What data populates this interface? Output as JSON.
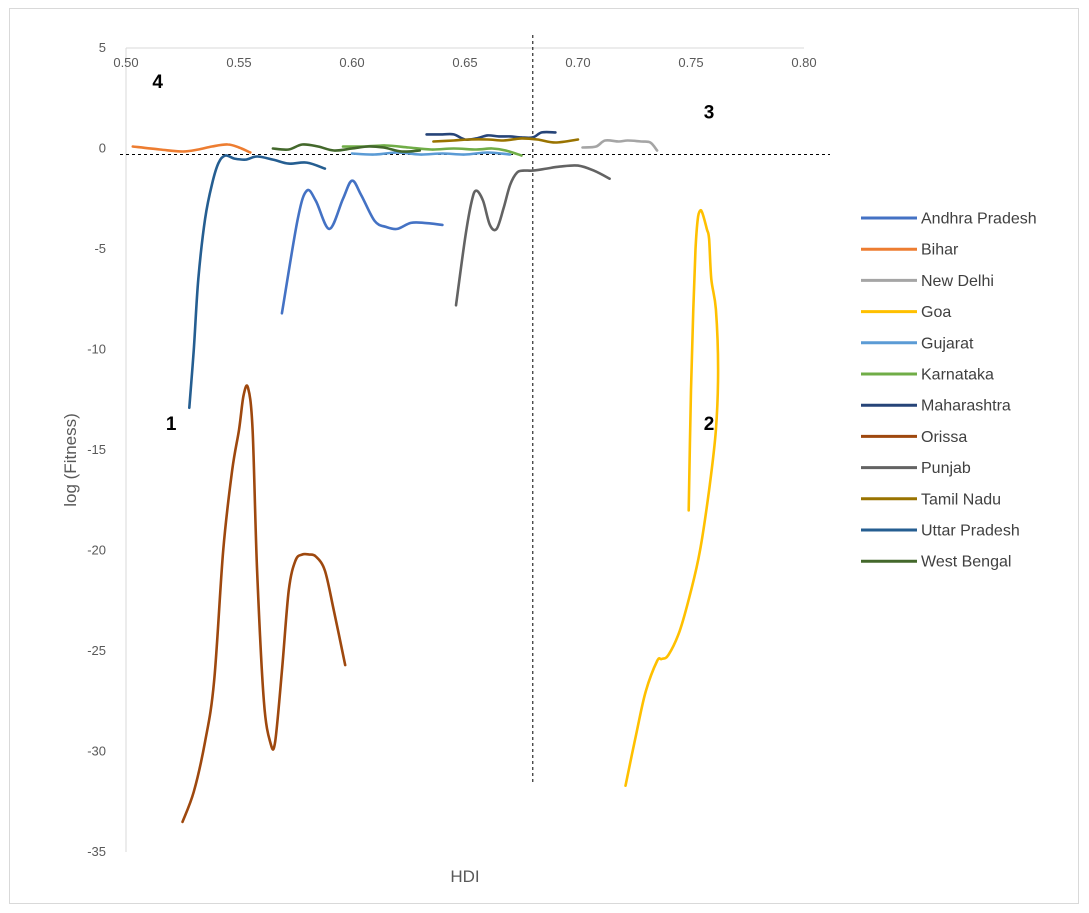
{
  "chart_data": {
    "type": "line",
    "title": "",
    "xlabel": "HDI",
    "ylabel": "log (Fitness)",
    "xlim": [
      0.5,
      0.8
    ],
    "ylim": [
      -35,
      5
    ],
    "x_ticks": [
      "0.50",
      "0.55",
      "0.60",
      "0.65",
      "0.70",
      "0.75",
      "0.80"
    ],
    "y_ticks": [
      "5",
      "0",
      "-5",
      "-10",
      "-15",
      "-20",
      "-25",
      "-30",
      "-35"
    ],
    "x_axis_at": 5,
    "legend_position": "right",
    "reference_lines": {
      "x": 0.68,
      "y": -0.3
    },
    "quadrant_labels": [
      {
        "text": "4",
        "x": 0.514,
        "y": 3.0
      },
      {
        "text": "3",
        "x": 0.758,
        "y": 1.5
      },
      {
        "text": "1",
        "x": 0.52,
        "y": -14.0
      },
      {
        "text": "2",
        "x": 0.758,
        "y": -14.0
      }
    ],
    "series": [
      {
        "name": "Andhra Pradesh",
        "color": "#4472C4",
        "x": [
          0.569,
          0.576,
          0.58,
          0.584,
          0.59,
          0.596,
          0.6,
          0.604,
          0.61,
          0.615,
          0.62,
          0.626,
          0.632,
          0.64
        ],
        "y": [
          -8.2,
          -3.5,
          -2.1,
          -2.6,
          -4.0,
          -2.5,
          -1.6,
          -2.3,
          -3.6,
          -3.9,
          -4.0,
          -3.7,
          -3.7,
          -3.8
        ]
      },
      {
        "name": "Bihar",
        "color": "#ED7D31",
        "x": [
          0.503,
          0.515,
          0.525,
          0.532,
          0.538,
          0.545,
          0.55,
          0.555
        ],
        "y": [
          0.1,
          -0.05,
          -0.15,
          -0.05,
          0.1,
          0.2,
          0.05,
          -0.2
        ]
      },
      {
        "name": "New Delhi",
        "color": "#A5A5A5",
        "x": [
          0.702,
          0.708,
          0.712,
          0.718,
          0.722,
          0.728,
          0.732,
          0.735
        ],
        "y": [
          0.05,
          0.1,
          0.4,
          0.35,
          0.4,
          0.35,
          0.3,
          -0.1
        ]
      },
      {
        "name": "Goa",
        "color": "#FFC000",
        "x": [
          0.749,
          0.75,
          0.751,
          0.752,
          0.753,
          0.754,
          0.755,
          0.757,
          0.758,
          0.759,
          0.761,
          0.762,
          0.761,
          0.758,
          0.754,
          0.75,
          0.745,
          0.74,
          0.737,
          0.735,
          0.73,
          0.726,
          0.721
        ],
        "y": [
          -18.0,
          -12.0,
          -8.0,
          -5.0,
          -3.5,
          -3.1,
          -3.2,
          -4.0,
          -4.5,
          -6.5,
          -8.0,
          -11.0,
          -14.0,
          -17.0,
          -20.0,
          -22.0,
          -24.0,
          -25.2,
          -25.4,
          -25.5,
          -27.0,
          -29.0,
          -31.7
        ]
      },
      {
        "name": "Gujarat",
        "color": "#5B9BD5",
        "x": [
          0.6,
          0.61,
          0.62,
          0.63,
          0.64,
          0.65,
          0.66,
          0.67
        ],
        "y": [
          -0.25,
          -0.3,
          -0.2,
          -0.3,
          -0.25,
          -0.3,
          -0.2,
          -0.3
        ]
      },
      {
        "name": "Karnataka",
        "color": "#70AD47",
        "x": [
          0.596,
          0.605,
          0.615,
          0.625,
          0.635,
          0.645,
          0.655,
          0.662,
          0.668,
          0.675
        ],
        "y": [
          0.1,
          0.1,
          0.15,
          0.05,
          -0.05,
          0.0,
          -0.05,
          0.0,
          -0.1,
          -0.35
        ]
      },
      {
        "name": "Maharashtra",
        "color": "#264478",
        "x": [
          0.633,
          0.64,
          0.645,
          0.65,
          0.655,
          0.66,
          0.665,
          0.67,
          0.675,
          0.68,
          0.684,
          0.69
        ],
        "y": [
          0.7,
          0.7,
          0.7,
          0.45,
          0.5,
          0.65,
          0.6,
          0.6,
          0.55,
          0.55,
          0.8,
          0.8
        ]
      },
      {
        "name": "Orissa",
        "color": "#9E480E",
        "x": [
          0.525,
          0.53,
          0.535,
          0.539,
          0.543,
          0.547,
          0.55,
          0.552,
          0.554,
          0.556,
          0.558,
          0.561,
          0.564,
          0.566,
          0.569,
          0.572,
          0.575,
          0.578,
          0.581,
          0.584,
          0.588,
          0.592,
          0.597
        ],
        "y": [
          -33.5,
          -32.0,
          -29.5,
          -26.5,
          -20.0,
          -16.0,
          -14.0,
          -12.3,
          -11.9,
          -14.0,
          -21.0,
          -27.5,
          -29.6,
          -29.5,
          -26.0,
          -22.0,
          -20.5,
          -20.2,
          -20.2,
          -20.3,
          -21.0,
          -23.0,
          -25.7
        ]
      },
      {
        "name": "Punjab",
        "color": "#636363",
        "x": [
          0.646,
          0.65,
          0.653,
          0.655,
          0.658,
          0.661,
          0.664,
          0.667,
          0.67,
          0.673,
          0.676,
          0.68,
          0.686,
          0.692,
          0.7,
          0.707,
          0.714
        ],
        "y": [
          -7.8,
          -4.5,
          -2.6,
          -2.1,
          -2.6,
          -3.8,
          -4.0,
          -3.0,
          -1.8,
          -1.2,
          -1.1,
          -1.1,
          -1.0,
          -0.9,
          -0.85,
          -1.1,
          -1.5
        ]
      },
      {
        "name": "Tamil Nadu",
        "color": "#997300",
        "x": [
          0.636,
          0.645,
          0.652,
          0.66,
          0.667,
          0.675,
          0.682,
          0.69,
          0.7
        ],
        "y": [
          0.35,
          0.4,
          0.45,
          0.45,
          0.4,
          0.5,
          0.45,
          0.3,
          0.45
        ]
      },
      {
        "name": "Uttar Pradesh",
        "color": "#255E91",
        "x": [
          0.528,
          0.53,
          0.532,
          0.535,
          0.538,
          0.541,
          0.544,
          0.548,
          0.553,
          0.558,
          0.565,
          0.572,
          0.58,
          0.588
        ],
        "y": [
          -12.9,
          -10.0,
          -6.5,
          -3.5,
          -1.8,
          -0.7,
          -0.35,
          -0.5,
          -0.55,
          -0.4,
          -0.55,
          -0.75,
          -0.7,
          -1.0
        ]
      },
      {
        "name": "West Bengal",
        "color": "#43682B",
        "x": [
          0.565,
          0.572,
          0.578,
          0.585,
          0.592,
          0.6,
          0.607,
          0.614,
          0.622,
          0.63
        ],
        "y": [
          0.0,
          -0.05,
          0.2,
          0.1,
          -0.1,
          0.0,
          0.1,
          0.05,
          -0.15,
          -0.1
        ]
      }
    ]
  }
}
